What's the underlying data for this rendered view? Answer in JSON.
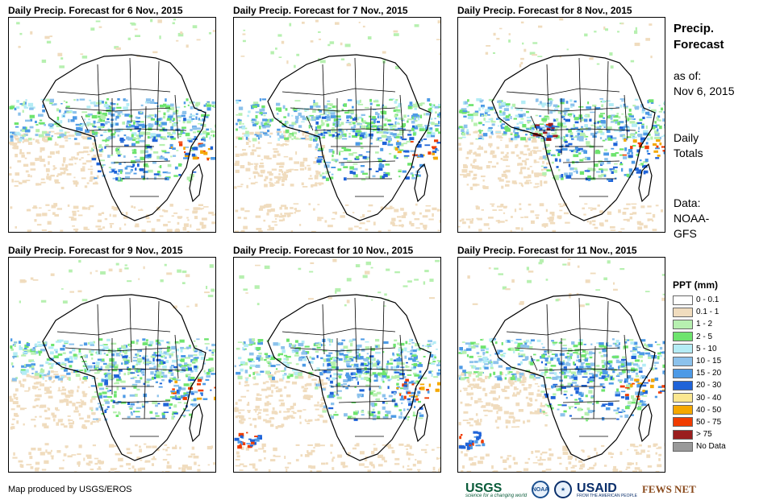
{
  "panels": [
    {
      "title": "Daily Precip. Forecast for 6 Nov., 2015"
    },
    {
      "title": "Daily Precip. Forecast for 7 Nov., 2015"
    },
    {
      "title": "Daily Precip. Forecast for 8 Nov., 2015"
    },
    {
      "title": "Daily Precip. Forecast for 9 Nov., 2015"
    },
    {
      "title": "Daily Precip. Forecast for 10 Nov., 2015"
    },
    {
      "title": "Daily Precip. Forecast for 11 Nov., 2015"
    }
  ],
  "sidebar": {
    "title_line1": "Precip.",
    "title_line2": "Forecast",
    "asof_label": "as of:",
    "asof_date": "Nov 6, 2015",
    "totals_line1": "Daily",
    "totals_line2": "Totals",
    "data_line1": "Data:",
    "data_line2": "NOAA-",
    "data_line3": "GFS"
  },
  "legend": {
    "title": "PPT (mm)",
    "items": [
      {
        "label": "0 - 0.1",
        "color": "#ffffff"
      },
      {
        "label": "0.1 - 1",
        "color": "#f0dcbe"
      },
      {
        "label": "1 - 2",
        "color": "#b7f0b0"
      },
      {
        "label": "2 - 5",
        "color": "#6ee46e"
      },
      {
        "label": "5 - 10",
        "color": "#b4ecf5"
      },
      {
        "label": "10 - 15",
        "color": "#8cc2ec"
      },
      {
        "label": "15 - 20",
        "color": "#4d9ae6"
      },
      {
        "label": "20 - 30",
        "color": "#1f63d8"
      },
      {
        "label": "30 - 40",
        "color": "#fbe790"
      },
      {
        "label": "40 - 50",
        "color": "#f5a800"
      },
      {
        "label": "50 - 75",
        "color": "#f03c00"
      },
      {
        "label": "> 75",
        "color": "#9a1e1e"
      },
      {
        "label": "No Data",
        "color": "#999999"
      }
    ]
  },
  "footer": {
    "credit": "Map produced by USGS/EROS",
    "logos": {
      "usgs": "USGS",
      "usgs_tag": "science for a changing world",
      "noaa": "NOAA",
      "usaid": "USAID",
      "usaid_tag": "FROM THE AMERICAN PEOPLE",
      "fews": "FEWS NET"
    }
  }
}
